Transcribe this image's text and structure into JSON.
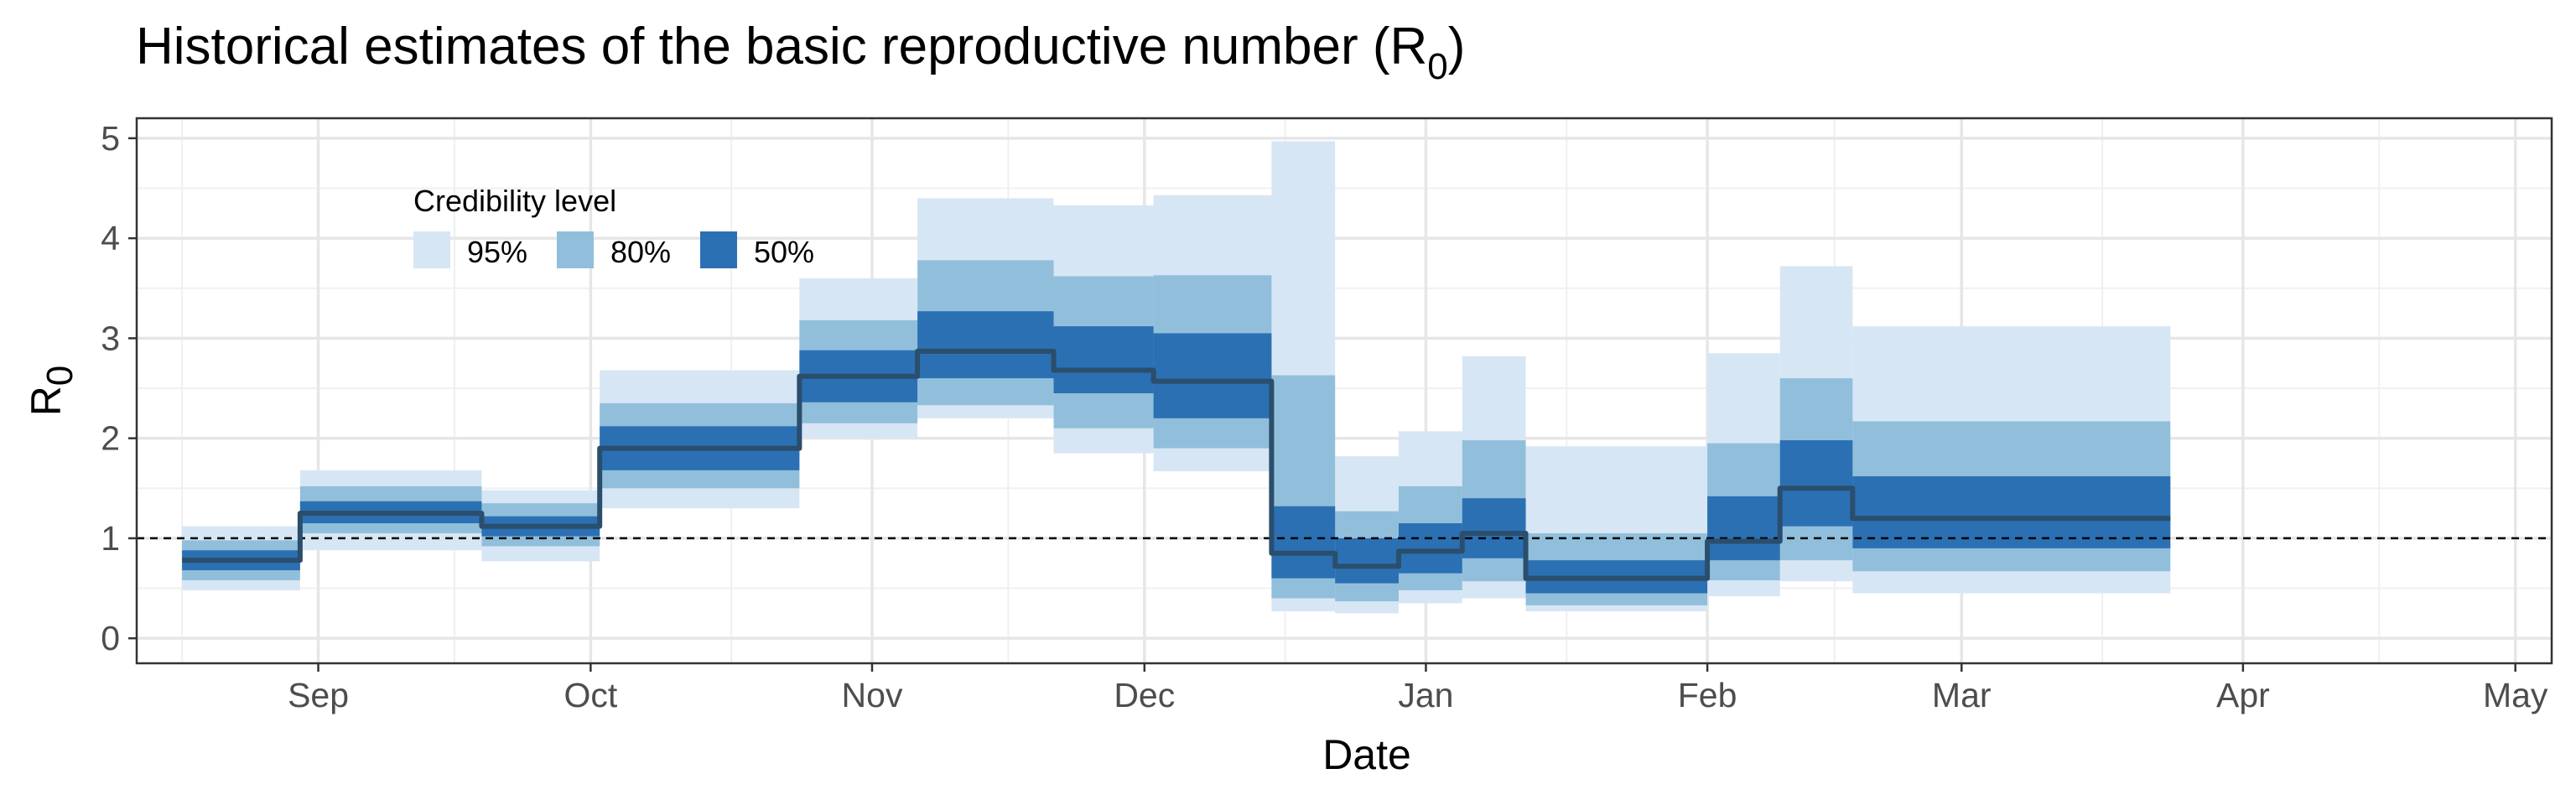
{
  "chart_data": {
    "type": "area",
    "title": "Historical estimates of the basic reproductive number (R",
    "title_subscript": "0",
    "title_suffix": ")",
    "xlabel": "Date",
    "ylabel": "R",
    "ylabel_subscript": "0",
    "x_ticks": [
      {
        "date": "2020-09-01",
        "label": "Sep"
      },
      {
        "date": "2020-10-01",
        "label": "Oct"
      },
      {
        "date": "2020-11-01",
        "label": "Nov"
      },
      {
        "date": "2020-12-01",
        "label": "Dec"
      },
      {
        "date": "2021-01-01",
        "label": "Jan"
      },
      {
        "date": "2021-02-01",
        "label": "Feb"
      },
      {
        "date": "2021-03-01",
        "label": "Mar"
      },
      {
        "date": "2021-04-01",
        "label": "Apr"
      },
      {
        "date": "2021-05-01",
        "label": "May"
      }
    ],
    "y_ticks": [
      0,
      1,
      2,
      3,
      4,
      5
    ],
    "xlim": [
      "2020-08-12",
      "2021-05-05"
    ],
    "ylim": [
      -0.25,
      5.2
    ],
    "grid": true,
    "reference_line": {
      "y": 1,
      "style": "dashed"
    },
    "legend": {
      "title": "Credibility level",
      "placement": "top-left inside",
      "items": [
        {
          "label": "95%",
          "color": "#d7e6f4"
        },
        {
          "label": "80%",
          "color": "#91bfdb"
        },
        {
          "label": "50%",
          "color": "#2b70b3"
        }
      ]
    },
    "median_color": "#2a4e6c",
    "segments": [
      {
        "start": "2020-08-17",
        "end": "2020-08-29",
        "median": 0.78,
        "lo50": 0.68,
        "hi50": 0.88,
        "lo80": 0.58,
        "hi80": 0.98,
        "lo95": 0.48,
        "hi95": 1.12
      },
      {
        "start": "2020-08-30",
        "end": "2020-09-18",
        "median": 1.25,
        "lo50": 1.15,
        "hi50": 1.37,
        "lo80": 1.05,
        "hi80": 1.52,
        "lo95": 0.88,
        "hi95": 1.68
      },
      {
        "start": "2020-09-19",
        "end": "2020-10-01",
        "median": 1.12,
        "lo50": 1.02,
        "hi50": 1.22,
        "lo80": 0.92,
        "hi80": 1.35,
        "lo95": 0.77,
        "hi95": 1.48
      },
      {
        "start": "2020-10-02",
        "end": "2020-10-23",
        "median": 1.9,
        "lo50": 1.68,
        "hi50": 2.12,
        "lo80": 1.5,
        "hi80": 2.35,
        "lo95": 1.3,
        "hi95": 2.68
      },
      {
        "start": "2020-10-24",
        "end": "2020-11-05",
        "median": 2.62,
        "lo50": 2.36,
        "hi50": 2.88,
        "lo80": 2.15,
        "hi80": 3.18,
        "lo95": 2.0,
        "hi95": 3.6
      },
      {
        "start": "2020-11-06",
        "end": "2020-11-20",
        "median": 2.87,
        "lo50": 2.6,
        "hi50": 3.27,
        "lo80": 2.33,
        "hi80": 3.78,
        "lo95": 2.2,
        "hi95": 4.4
      },
      {
        "start": "2020-11-21",
        "end": "2020-12-01",
        "median": 2.68,
        "lo50": 2.45,
        "hi50": 3.12,
        "lo80": 2.1,
        "hi80": 3.62,
        "lo95": 1.85,
        "hi95": 4.33
      },
      {
        "start": "2020-12-02",
        "end": "2020-12-14",
        "median": 2.57,
        "lo50": 2.2,
        "hi50": 3.05,
        "lo80": 1.9,
        "hi80": 3.63,
        "lo95": 1.67,
        "hi95": 4.43
      },
      {
        "start": "2020-12-15",
        "end": "2020-12-21",
        "median": 0.85,
        "lo50": 0.6,
        "hi50": 1.32,
        "lo80": 0.4,
        "hi80": 2.63,
        "lo95": 0.27,
        "hi95": 4.97
      },
      {
        "start": "2020-12-22",
        "end": "2020-12-28",
        "median": 0.72,
        "lo50": 0.55,
        "hi50": 1.0,
        "lo80": 0.37,
        "hi80": 1.27,
        "lo95": 0.25,
        "hi95": 1.82
      },
      {
        "start": "2020-12-29",
        "end": "2021-01-04",
        "median": 0.87,
        "lo50": 0.65,
        "hi50": 1.15,
        "lo80": 0.48,
        "hi80": 1.52,
        "lo95": 0.35,
        "hi95": 2.07
      },
      {
        "start": "2021-01-05",
        "end": "2021-01-11",
        "median": 1.05,
        "lo50": 0.8,
        "hi50": 1.4,
        "lo80": 0.57,
        "hi80": 1.98,
        "lo95": 0.4,
        "hi95": 2.82
      },
      {
        "start": "2021-01-12",
        "end": "2021-01-31",
        "median": 0.6,
        "lo50": 0.45,
        "hi50": 0.78,
        "lo80": 0.33,
        "hi80": 1.05,
        "lo95": 0.27,
        "hi95": 1.92
      },
      {
        "start": "2021-02-01",
        "end": "2021-02-08",
        "median": 0.97,
        "lo50": 0.78,
        "hi50": 1.42,
        "lo80": 0.58,
        "hi80": 1.95,
        "lo95": 0.42,
        "hi95": 2.85
      },
      {
        "start": "2021-02-09",
        "end": "2021-02-16",
        "median": 1.5,
        "lo50": 1.12,
        "hi50": 1.98,
        "lo80": 0.78,
        "hi80": 2.6,
        "lo95": 0.57,
        "hi95": 3.72
      },
      {
        "start": "2021-02-17",
        "end": "2021-03-23",
        "median": 1.2,
        "lo50": 0.9,
        "hi50": 1.62,
        "lo80": 0.67,
        "hi80": 2.17,
        "lo95": 0.45,
        "hi95": 3.12
      }
    ]
  }
}
